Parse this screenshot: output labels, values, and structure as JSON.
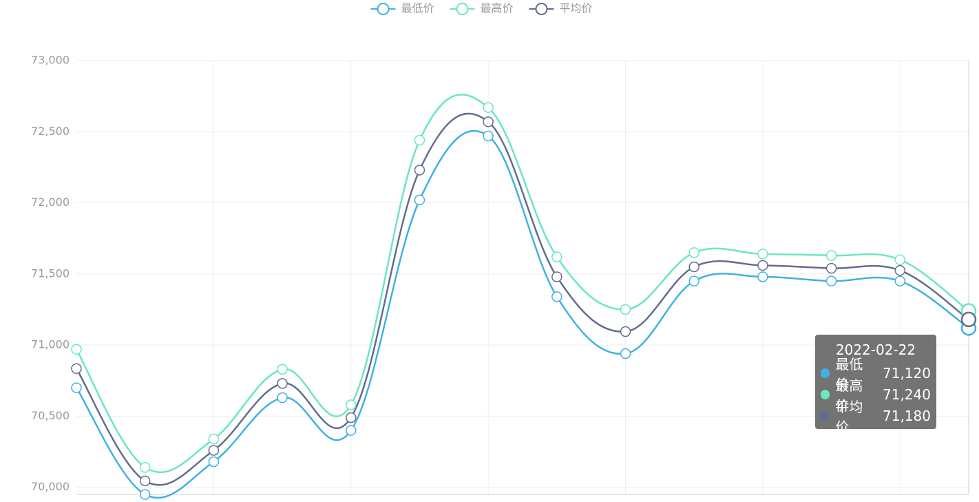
{
  "chart_data": {
    "type": "line",
    "smooth": true,
    "categories": [
      null,
      null,
      null,
      null,
      null,
      null,
      null,
      null,
      null,
      null,
      null,
      null,
      null,
      null
    ],
    "series": [
      {
        "name": "最低价",
        "color": "#3fb1e3",
        "values": [
          70700,
          69950,
          70180,
          70630,
          70400,
          72020,
          72470,
          71340,
          70940,
          71450,
          71480,
          71450,
          71450,
          71120
        ]
      },
      {
        "name": "最高价",
        "color": "#6be6c1",
        "values": [
          70970,
          70140,
          70340,
          70830,
          70580,
          72440,
          72670,
          71620,
          71250,
          71650,
          71640,
          71630,
          71600,
          71240
        ]
      },
      {
        "name": "平均价",
        "color": "#626c91",
        "values": [
          70835,
          70045,
          70260,
          70730,
          70490,
          72230,
          72570,
          71480,
          71095,
          71550,
          71560,
          71540,
          71525,
          71180
        ]
      }
    ],
    "ylim": [
      69950,
      73000
    ],
    "yticks": [
      {
        "value": 70000,
        "label": "70,000"
      },
      {
        "value": 70500,
        "label": "70,500"
      },
      {
        "value": 71000,
        "label": "71,000"
      },
      {
        "value": 71500,
        "label": "71,500"
      },
      {
        "value": 72000,
        "label": "72,000"
      },
      {
        "value": 72500,
        "label": "72,500"
      },
      {
        "value": 73000,
        "label": "73,000"
      }
    ],
    "grid": true,
    "legend": "top",
    "tooltip": {
      "title": "2022-02-22",
      "rows": [
        {
          "name": "最低价",
          "value_label": "71,120"
        },
        {
          "name": "最高价",
          "value_label": "71,240"
        },
        {
          "name": "平均价",
          "value_label": "71,180"
        }
      ]
    }
  }
}
